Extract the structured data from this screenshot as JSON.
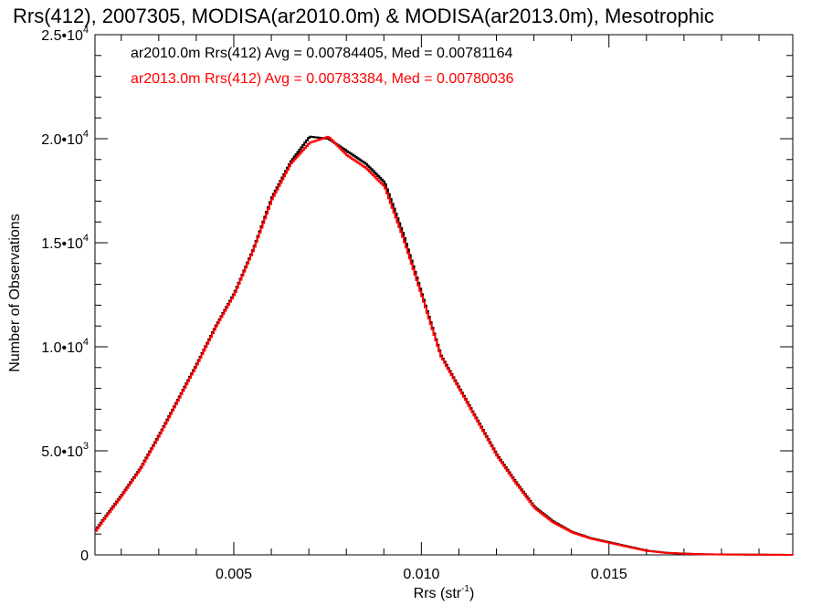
{
  "chart_data": {
    "type": "line",
    "title": "Rrs(412), 2007305, MODISA(ar2010.0m) & MODISA(ar2013.0m), Mesotrophic",
    "xlabel": "Rrs (str",
    "xlabel_sup": "-1",
    "xlabel_end": ")",
    "ylabel": "Number of Observations",
    "xlim": [
      0.0013,
      0.0199
    ],
    "ylim": [
      0,
      25000
    ],
    "x_ticks": [
      {
        "value": 0.005,
        "label": "0.005"
      },
      {
        "value": 0.01,
        "label": "0.010"
      },
      {
        "value": 0.015,
        "label": "0.015"
      }
    ],
    "y_ticks": [
      {
        "value": 0,
        "label": "0",
        "sup": ""
      },
      {
        "value": 5000,
        "label": "5.0•10",
        "sup": "3"
      },
      {
        "value": 10000,
        "label": "1.0•10",
        "sup": "4"
      },
      {
        "value": 15000,
        "label": "1.5•10",
        "sup": "4"
      },
      {
        "value": 20000,
        "label": "2.0•10",
        "sup": "4"
      },
      {
        "value": 25000,
        "label": "2.5•10",
        "sup": "4"
      }
    ],
    "legend": [
      {
        "text": "ar2010.0m Rrs(412) Avg = 0.00784405, Med = 0.00781164",
        "color": "#000000"
      },
      {
        "text": "ar2013.0m Rrs(412) Avg = 0.00783384, Med = 0.00780036",
        "color": "#ff0000"
      }
    ],
    "series": [
      {
        "color": "#000000",
        "x": [
          0.0013,
          0.0015,
          0.002,
          0.0025,
          0.003,
          0.0035,
          0.004,
          0.0045,
          0.005,
          0.0055,
          0.006,
          0.0065,
          0.007,
          0.0075,
          0.008,
          0.0085,
          0.009,
          0.0095,
          0.01,
          0.0105,
          0.011,
          0.0115,
          0.012,
          0.0125,
          0.013,
          0.0135,
          0.014,
          0.0145,
          0.015,
          0.0155,
          0.016,
          0.0165,
          0.017,
          0.0175,
          0.018,
          0.019,
          0.0199
        ],
        "y": [
          1200,
          1700,
          2900,
          4200,
          5800,
          7500,
          9200,
          11000,
          12600,
          14700,
          17200,
          18900,
          20100,
          20000,
          19400,
          18800,
          17900,
          15400,
          12500,
          9600,
          8000,
          6400,
          4800,
          3500,
          2300,
          1600,
          1100,
          800,
          600,
          400,
          200,
          100,
          60,
          30,
          20,
          10,
          0
        ]
      },
      {
        "color": "#ff0000",
        "x": [
          0.0013,
          0.0015,
          0.002,
          0.0025,
          0.003,
          0.0035,
          0.004,
          0.0045,
          0.005,
          0.0055,
          0.006,
          0.0065,
          0.007,
          0.0075,
          0.008,
          0.0085,
          0.009,
          0.0095,
          0.01,
          0.0105,
          0.011,
          0.0115,
          0.012,
          0.0125,
          0.013,
          0.0135,
          0.014,
          0.0145,
          0.015,
          0.0155,
          0.016,
          0.0165,
          0.017,
          0.0175,
          0.018,
          0.019,
          0.0199
        ],
        "y": [
          1150,
          1650,
          2850,
          4150,
          5750,
          7450,
          9150,
          10950,
          12550,
          14650,
          17100,
          18800,
          19800,
          20100,
          19200,
          18600,
          17700,
          15200,
          12400,
          9550,
          7950,
          6350,
          4750,
          3450,
          2250,
          1550,
          1080,
          780,
          580,
          380,
          190,
          95,
          55,
          28,
          18,
          9,
          0
        ]
      }
    ]
  }
}
